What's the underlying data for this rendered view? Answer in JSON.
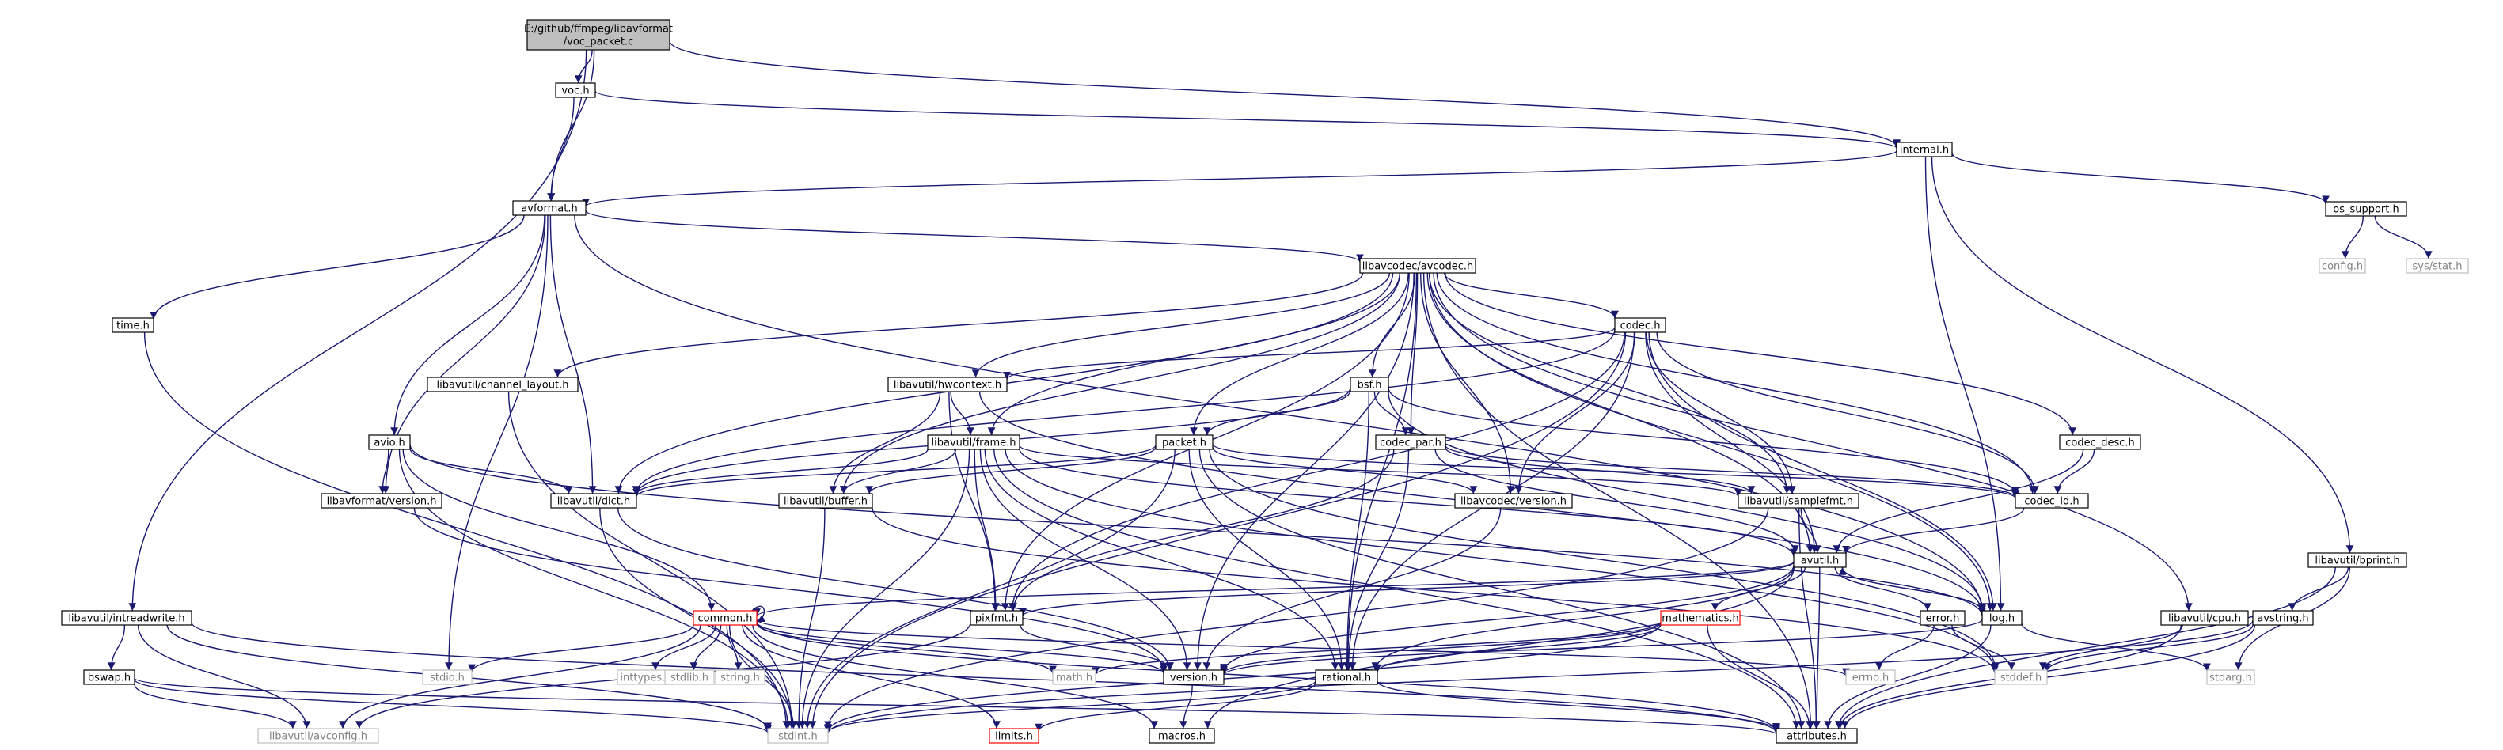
{
  "palette": {
    "edge": "#191970",
    "root_fill": "#bfbfbf",
    "node_border": "#000000",
    "missing_border": "#bfbfbf",
    "missing_text": "#808080",
    "truncated_border": "#ff0000"
  },
  "nodes": [
    {
      "id": "root",
      "lines": [
        "E:/github/ffmpeg/libavformat",
        "/voc_packet.c"
      ],
      "kind": "root"
    },
    {
      "id": "voc",
      "lines": [
        "voc.h"
      ],
      "kind": "normal"
    },
    {
      "id": "internal",
      "lines": [
        "internal.h"
      ],
      "kind": "normal"
    },
    {
      "id": "avformat",
      "lines": [
        "avformat.h"
      ],
      "kind": "normal"
    },
    {
      "id": "os_support",
      "lines": [
        "os_support.h"
      ],
      "kind": "normal"
    },
    {
      "id": "config",
      "lines": [
        "config.h"
      ],
      "kind": "missing"
    },
    {
      "id": "sysstat",
      "lines": [
        "sys/stat.h"
      ],
      "kind": "missing"
    },
    {
      "id": "avcodec",
      "lines": [
        "libavcodec/avcodec.h"
      ],
      "kind": "normal"
    },
    {
      "id": "time",
      "lines": [
        "time.h"
      ],
      "kind": "normal"
    },
    {
      "id": "codec",
      "lines": [
        "codec.h"
      ],
      "kind": "normal"
    },
    {
      "id": "channel_layout",
      "lines": [
        "libavutil/channel_layout.h"
      ],
      "kind": "normal"
    },
    {
      "id": "hwcontext",
      "lines": [
        "libavutil/hwcontext.h"
      ],
      "kind": "normal"
    },
    {
      "id": "bsf",
      "lines": [
        "bsf.h"
      ],
      "kind": "normal"
    },
    {
      "id": "avio",
      "lines": [
        "avio.h"
      ],
      "kind": "normal"
    },
    {
      "id": "frame",
      "lines": [
        "libavutil/frame.h"
      ],
      "kind": "normal"
    },
    {
      "id": "packet",
      "lines": [
        "packet.h"
      ],
      "kind": "normal"
    },
    {
      "id": "codec_par",
      "lines": [
        "codec_par.h"
      ],
      "kind": "normal"
    },
    {
      "id": "codec_desc",
      "lines": [
        "codec_desc.h"
      ],
      "kind": "normal"
    },
    {
      "id": "avf_version",
      "lines": [
        "libavformat/version.h"
      ],
      "kind": "normal"
    },
    {
      "id": "dict",
      "lines": [
        "libavutil/dict.h"
      ],
      "kind": "normal"
    },
    {
      "id": "buffer",
      "lines": [
        "libavutil/buffer.h"
      ],
      "kind": "normal"
    },
    {
      "id": "avc_version",
      "lines": [
        "libavcodec/version.h"
      ],
      "kind": "normal"
    },
    {
      "id": "samplefmt",
      "lines": [
        "libavutil/samplefmt.h"
      ],
      "kind": "normal"
    },
    {
      "id": "codec_id",
      "lines": [
        "codec_id.h"
      ],
      "kind": "normal"
    },
    {
      "id": "bprint",
      "lines": [
        "libavutil/bprint.h"
      ],
      "kind": "normal"
    },
    {
      "id": "avutil",
      "lines": [
        "avutil.h"
      ],
      "kind": "normal"
    },
    {
      "id": "intreadwrite",
      "lines": [
        "libavutil/intreadwrite.h"
      ],
      "kind": "normal"
    },
    {
      "id": "common",
      "lines": [
        "common.h"
      ],
      "kind": "truncated"
    },
    {
      "id": "pixfmt",
      "lines": [
        "pixfmt.h"
      ],
      "kind": "normal"
    },
    {
      "id": "mathematics",
      "lines": [
        "mathematics.h"
      ],
      "kind": "truncated"
    },
    {
      "id": "log",
      "lines": [
        "log.h"
      ],
      "kind": "normal"
    },
    {
      "id": "error",
      "lines": [
        "error.h"
      ],
      "kind": "normal"
    },
    {
      "id": "cpu",
      "lines": [
        "libavutil/cpu.h"
      ],
      "kind": "normal"
    },
    {
      "id": "avstring",
      "lines": [
        "avstring.h"
      ],
      "kind": "normal"
    },
    {
      "id": "stdio",
      "lines": [
        "stdio.h"
      ],
      "kind": "missing"
    },
    {
      "id": "inttypes",
      "lines": [
        "inttypes.h"
      ],
      "kind": "missing"
    },
    {
      "id": "stdlib",
      "lines": [
        "stdlib.h"
      ],
      "kind": "missing"
    },
    {
      "id": "string",
      "lines": [
        "string.h"
      ],
      "kind": "missing"
    },
    {
      "id": "mathh",
      "lines": [
        "math.h"
      ],
      "kind": "missing"
    },
    {
      "id": "version",
      "lines": [
        "version.h"
      ],
      "kind": "normal"
    },
    {
      "id": "rational",
      "lines": [
        "rational.h"
      ],
      "kind": "normal"
    },
    {
      "id": "errno",
      "lines": [
        "errno.h"
      ],
      "kind": "missing"
    },
    {
      "id": "stddef",
      "lines": [
        "stddef.h"
      ],
      "kind": "missing"
    },
    {
      "id": "stdarg",
      "lines": [
        "stdarg.h"
      ],
      "kind": "missing"
    },
    {
      "id": "bswap",
      "lines": [
        "bswap.h"
      ],
      "kind": "normal"
    },
    {
      "id": "avconfig",
      "lines": [
        "libavutil/avconfig.h"
      ],
      "kind": "missing"
    },
    {
      "id": "stdint",
      "lines": [
        "stdint.h"
      ],
      "kind": "missing"
    },
    {
      "id": "limits",
      "lines": [
        "limits.h"
      ],
      "kind": "truncated"
    },
    {
      "id": "macros",
      "lines": [
        "macros.h"
      ],
      "kind": "normal"
    },
    {
      "id": "attributes",
      "lines": [
        "attributes.h"
      ],
      "kind": "normal"
    }
  ],
  "edges": [
    [
      "root",
      "voc"
    ],
    [
      "root",
      "internal"
    ],
    [
      "root",
      "avformat"
    ],
    [
      "root",
      "intreadwrite"
    ],
    [
      "voc",
      "avformat"
    ],
    [
      "voc",
      "internal"
    ],
    [
      "internal",
      "avformat"
    ],
    [
      "internal",
      "os_support"
    ],
    [
      "internal",
      "log"
    ],
    [
      "internal",
      "bprint"
    ],
    [
      "os_support",
      "config"
    ],
    [
      "os_support",
      "sysstat"
    ],
    [
      "avformat",
      "time"
    ],
    [
      "avformat",
      "avcodec"
    ],
    [
      "avformat",
      "avio"
    ],
    [
      "avformat",
      "avf_version"
    ],
    [
      "avformat",
      "dict"
    ],
    [
      "avformat",
      "stdio"
    ],
    [
      "avformat",
      "log"
    ],
    [
      "time",
      "stdint"
    ],
    [
      "avcodec",
      "codec"
    ],
    [
      "avcodec",
      "channel_layout"
    ],
    [
      "avcodec",
      "hwcontext"
    ],
    [
      "avcodec",
      "bsf"
    ],
    [
      "avcodec",
      "frame"
    ],
    [
      "avcodec",
      "packet"
    ],
    [
      "avcodec",
      "codec_par"
    ],
    [
      "avcodec",
      "codec_desc"
    ],
    [
      "avcodec",
      "dict"
    ],
    [
      "avcodec",
      "buffer"
    ],
    [
      "avcodec",
      "avc_version"
    ],
    [
      "avcodec",
      "samplefmt"
    ],
    [
      "avcodec",
      "codec_id"
    ],
    [
      "avcodec",
      "avutil"
    ],
    [
      "avcodec",
      "pixfmt"
    ],
    [
      "avcodec",
      "log"
    ],
    [
      "avcodec",
      "cpu"
    ],
    [
      "avcodec",
      "attributes"
    ],
    [
      "avcodec",
      "rational"
    ],
    [
      "avcodec",
      "version"
    ],
    [
      "codec",
      "hwcontext"
    ],
    [
      "codec",
      "avc_version"
    ],
    [
      "codec",
      "samplefmt"
    ],
    [
      "codec",
      "codec_id"
    ],
    [
      "codec",
      "avutil"
    ],
    [
      "codec",
      "pixfmt"
    ],
    [
      "codec",
      "log"
    ],
    [
      "codec",
      "rational"
    ],
    [
      "codec",
      "dict"
    ],
    [
      "codec",
      "stdint"
    ],
    [
      "channel_layout",
      "stdint"
    ],
    [
      "hwcontext",
      "frame"
    ],
    [
      "hwcontext",
      "buffer"
    ],
    [
      "hwcontext",
      "log"
    ],
    [
      "hwcontext",
      "pixfmt"
    ],
    [
      "bsf",
      "packet"
    ],
    [
      "bsf",
      "codec_par"
    ],
    [
      "bsf",
      "codec_id"
    ],
    [
      "bsf",
      "dict"
    ],
    [
      "bsf",
      "log"
    ],
    [
      "bsf",
      "rational"
    ],
    [
      "avio",
      "avf_version"
    ],
    [
      "avio",
      "dict"
    ],
    [
      "avio",
      "log"
    ],
    [
      "avio",
      "common"
    ],
    [
      "avio",
      "stdint"
    ],
    [
      "frame",
      "dict"
    ],
    [
      "frame",
      "buffer"
    ],
    [
      "frame",
      "samplefmt"
    ],
    [
      "frame",
      "pixfmt"
    ],
    [
      "frame",
      "rational"
    ],
    [
      "frame",
      "avutil"
    ],
    [
      "frame",
      "version"
    ],
    [
      "frame",
      "stddef"
    ],
    [
      "frame",
      "stdint"
    ],
    [
      "frame",
      "attributes"
    ],
    [
      "packet",
      "buffer"
    ],
    [
      "packet",
      "dict"
    ],
    [
      "packet",
      "avc_version"
    ],
    [
      "packet",
      "codec_id"
    ],
    [
      "packet",
      "rational"
    ],
    [
      "packet",
      "attributes"
    ],
    [
      "packet",
      "stddef"
    ],
    [
      "packet",
      "stdint"
    ],
    [
      "codec_par",
      "codec_id"
    ],
    [
      "codec_par",
      "pixfmt"
    ],
    [
      "codec_par",
      "avutil"
    ],
    [
      "codec_par",
      "rational"
    ],
    [
      "codec_par",
      "samplefmt"
    ],
    [
      "codec_desc",
      "codec_id"
    ],
    [
      "codec_desc",
      "avutil"
    ],
    [
      "avf_version",
      "version"
    ],
    [
      "dict",
      "stdint"
    ],
    [
      "dict",
      "version"
    ],
    [
      "buffer",
      "stdint"
    ],
    [
      "buffer",
      "stddef"
    ],
    [
      "avc_version",
      "version"
    ],
    [
      "samplefmt",
      "avutil"
    ],
    [
      "samplefmt",
      "attributes"
    ],
    [
      "samplefmt",
      "stdint"
    ],
    [
      "codec_id",
      "avutil"
    ],
    [
      "bprint",
      "avstring"
    ],
    [
      "bprint",
      "stdarg"
    ],
    [
      "bprint",
      "attributes"
    ],
    [
      "avutil",
      "common"
    ],
    [
      "avutil",
      "mathematics"
    ],
    [
      "avutil",
      "log"
    ],
    [
      "avutil",
      "error"
    ],
    [
      "avutil",
      "pixfmt"
    ],
    [
      "avutil",
      "rational"
    ],
    [
      "avutil",
      "version"
    ],
    [
      "avutil",
      "macros"
    ],
    [
      "avutil",
      "attributes"
    ],
    [
      "intreadwrite",
      "bswap"
    ],
    [
      "intreadwrite",
      "avconfig"
    ],
    [
      "intreadwrite",
      "stdint"
    ],
    [
      "intreadwrite",
      "attributes"
    ],
    [
      "common",
      "common"
    ],
    [
      "common",
      "stdio"
    ],
    [
      "common",
      "inttypes"
    ],
    [
      "common",
      "stdlib"
    ],
    [
      "common",
      "string"
    ],
    [
      "common",
      "mathh"
    ],
    [
      "common",
      "errno"
    ],
    [
      "common",
      "stdint"
    ],
    [
      "common",
      "limits"
    ],
    [
      "common",
      "macros"
    ],
    [
      "common",
      "version"
    ],
    [
      "common",
      "attributes"
    ],
    [
      "common",
      "avconfig"
    ],
    [
      "pixfmt",
      "version"
    ],
    [
      "pixfmt",
      "avconfig"
    ],
    [
      "mathematics",
      "rational"
    ],
    [
      "mathematics",
      "attributes"
    ],
    [
      "mathematics",
      "version"
    ],
    [
      "mathematics",
      "stdint"
    ],
    [
      "mathematics",
      "mathh"
    ],
    [
      "log",
      "avutil"
    ],
    [
      "log",
      "stdarg"
    ],
    [
      "log",
      "version"
    ],
    [
      "log",
      "attributes"
    ],
    [
      "error",
      "errno"
    ],
    [
      "error",
      "stddef"
    ],
    [
      "cpu",
      "stddef"
    ],
    [
      "cpu",
      "attributes"
    ],
    [
      "avstring",
      "stddef"
    ],
    [
      "avstring",
      "stdint"
    ],
    [
      "avstring",
      "attributes"
    ],
    [
      "version",
      "macros"
    ],
    [
      "rational",
      "stdint"
    ],
    [
      "rational",
      "limits"
    ],
    [
      "rational",
      "attributes"
    ],
    [
      "bswap",
      "avconfig"
    ],
    [
      "bswap",
      "attributes"
    ],
    [
      "bswap",
      "stdint"
    ]
  ]
}
